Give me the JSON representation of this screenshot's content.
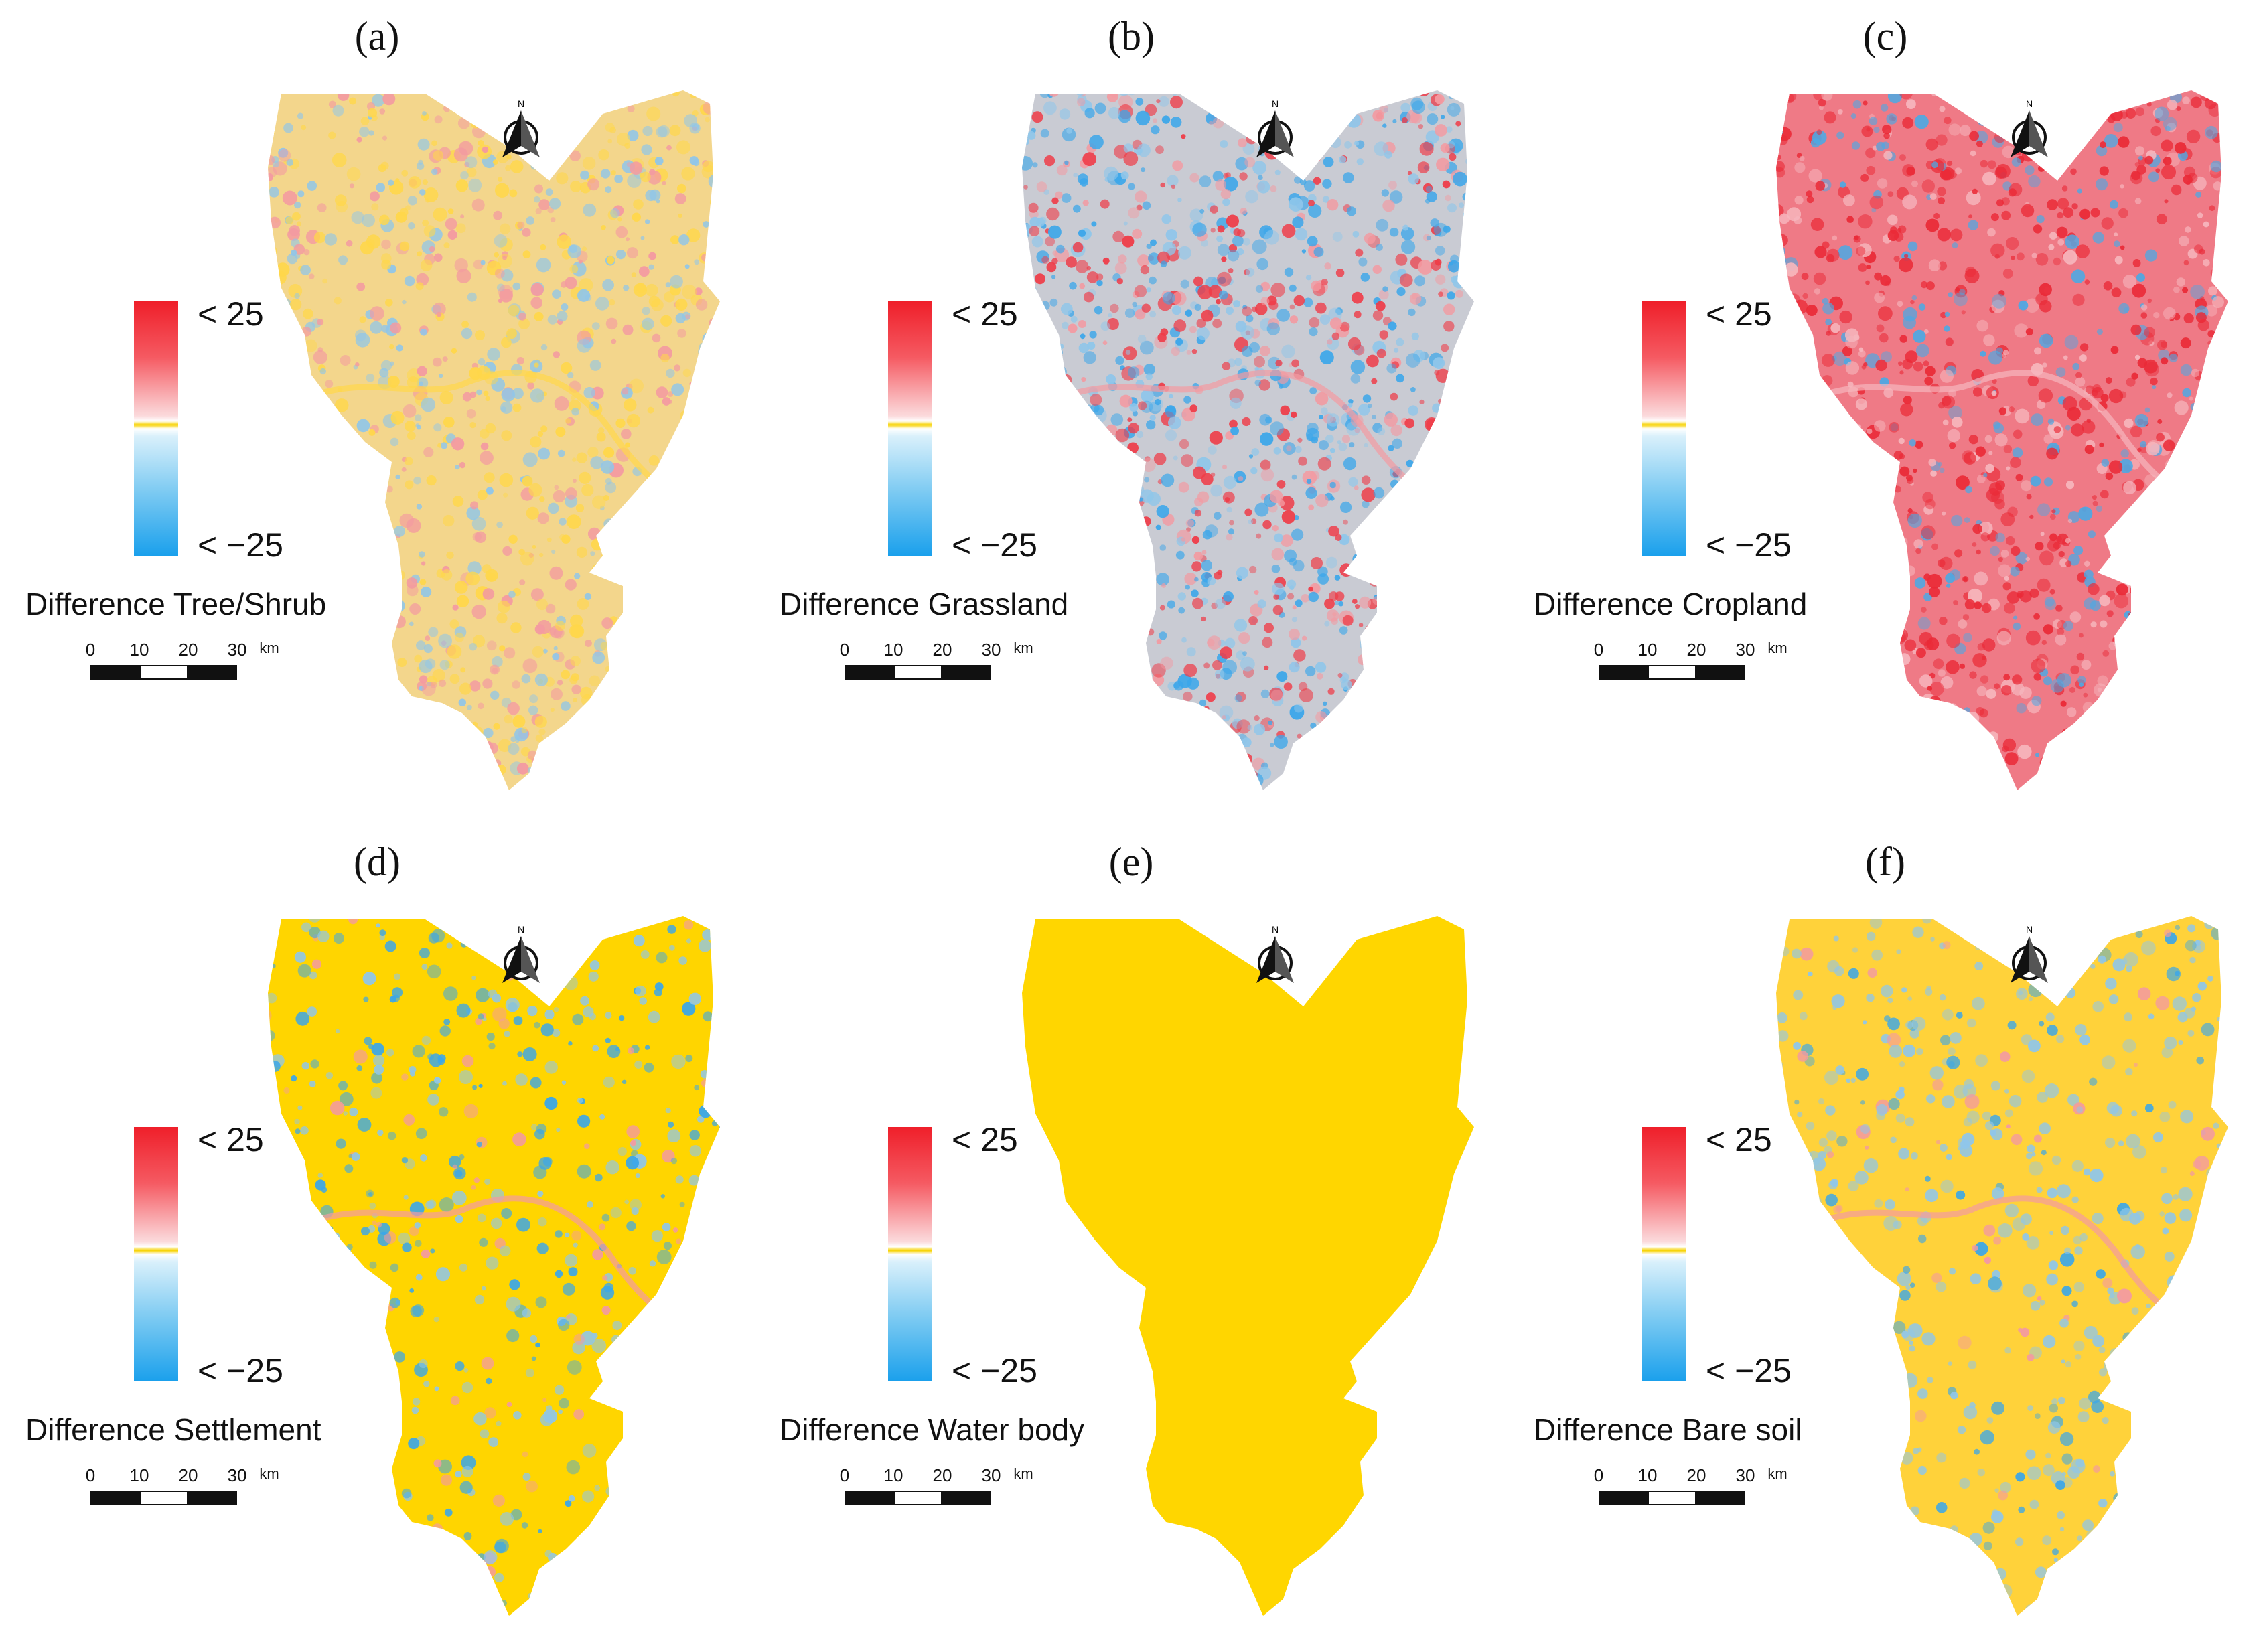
{
  "figure": {
    "panels": [
      {
        "letter": "(a)",
        "title": "Difference Tree/Shrub",
        "base": "#f3d68c",
        "accents": [
          "#8fc6ea",
          "#f39aa1",
          "#ffd74a"
        ],
        "accent_weights": [
          0.25,
          0.2,
          0.3
        ]
      },
      {
        "letter": "(b)",
        "title": "Difference Grassland",
        "base": "#c9cbd3",
        "accents": [
          "#3aa6ea",
          "#ef3c48",
          "#8fc6ea",
          "#f39aa1"
        ],
        "accent_weights": [
          0.3,
          0.25,
          0.2,
          0.15
        ]
      },
      {
        "letter": "(c)",
        "title": "Difference Cropland",
        "base": "#ef7a86",
        "accents": [
          "#ea2a37",
          "#4ea8e3",
          "#f6b6bd"
        ],
        "accent_weights": [
          0.4,
          0.18,
          0.2
        ]
      },
      {
        "letter": "(d)",
        "title": "Difference Settlement",
        "base": "#ffd500",
        "accents": [
          "#3aa6ea",
          "#8fc6ea",
          "#f39aa1"
        ],
        "accent_weights": [
          0.18,
          0.16,
          0.05
        ]
      },
      {
        "letter": "(e)",
        "title": "Difference Water body",
        "base": "#ffd600",
        "accents": [
          "#ffd600"
        ],
        "accent_weights": [
          0.0
        ]
      },
      {
        "letter": "(f)",
        "title": "Difference Bare soil",
        "base": "#ffd23a",
        "accents": [
          "#8fc6ea",
          "#3aa6ea",
          "#f39aa1"
        ],
        "accent_weights": [
          0.28,
          0.08,
          0.05
        ]
      }
    ],
    "legend": {
      "max_label": "< 25",
      "min_label": "< −25",
      "colors": {
        "high": "#ef1f2a",
        "zero": "#f7d200",
        "low": "#1aa0ec"
      }
    },
    "scale_bar": {
      "ticks": [
        "0",
        "10",
        "20",
        "30"
      ],
      "unit": "km"
    },
    "north_arrow": {
      "label": "N",
      "icon": "north-arrow-icon"
    }
  }
}
